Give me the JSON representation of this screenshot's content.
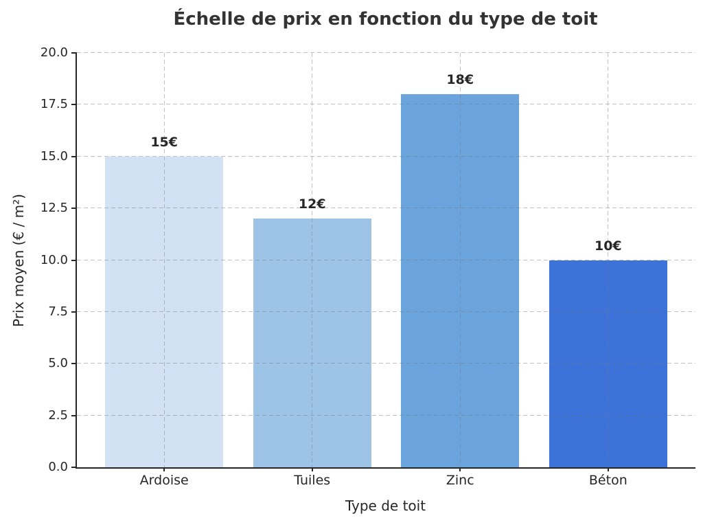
{
  "chart_data": {
    "type": "bar",
    "title": "Échelle de prix en fonction du type de toit",
    "xlabel": "Type de toit",
    "ylabel": "Prix moyen (€ / m²)",
    "categories": [
      "Ardoise",
      "Tuiles",
      "Zinc",
      "Béton"
    ],
    "values": [
      15,
      12,
      18,
      10
    ],
    "value_labels": [
      "15€",
      "12€",
      "18€",
      "10€"
    ],
    "bar_colors": [
      "#d2e1f3",
      "#9dc3e7",
      "#6ba3dc",
      "#3d73d9"
    ],
    "ylim": [
      0,
      20
    ],
    "yticks": [
      0,
      2.5,
      5,
      7.5,
      10,
      12.5,
      15,
      17.5,
      20
    ],
    "ytick_labels": [
      "0.0",
      "2.5",
      "5.0",
      "7.5",
      "10.0",
      "12.5",
      "15.0",
      "17.5",
      "20.0"
    ],
    "grid": "dashed-both-axes",
    "legend": "none",
    "grid_color": "#c9c9c9",
    "spine_color": "#262626",
    "title_color": "#333333"
  }
}
